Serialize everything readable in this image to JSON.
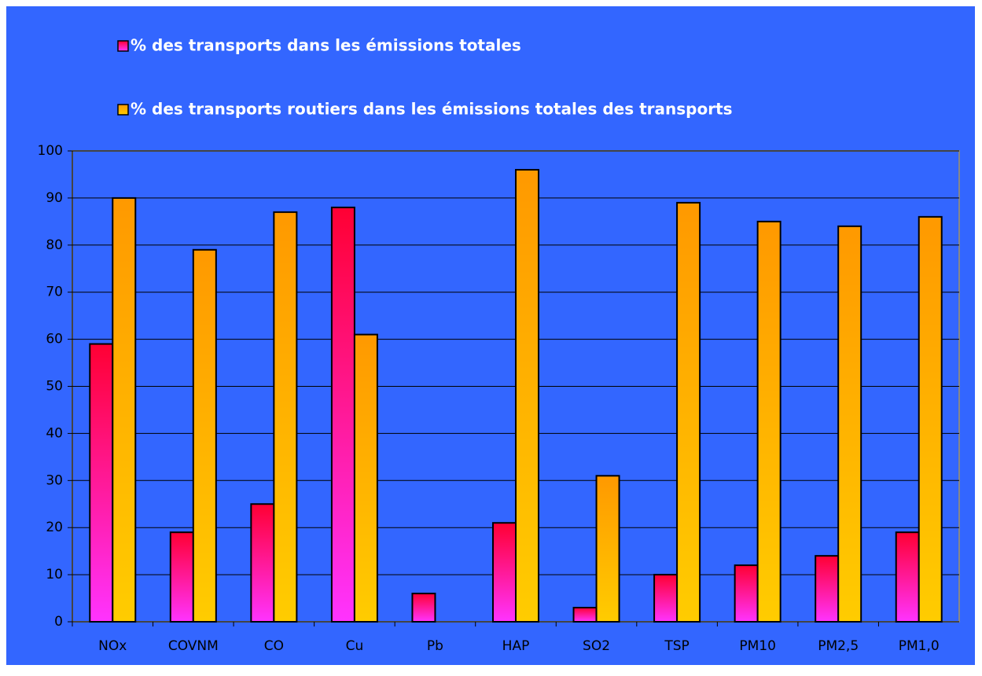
{
  "chart_data": {
    "type": "bar",
    "categories": [
      "NOx",
      "COVNM",
      "CO",
      "Cu",
      "Pb",
      "HAP",
      "SO2",
      "TSP",
      "PM10",
      "PM2,5",
      "PM1,0"
    ],
    "series": [
      {
        "name": "% des transports dans les émissions totales",
        "color": [
          "#ff0033",
          "#ff33ff"
        ],
        "values": [
          59,
          19,
          25,
          88,
          6,
          21,
          3,
          10,
          12,
          14,
          19
        ]
      },
      {
        "name": "% des transports routiers dans les émissions totales des transports",
        "color": [
          "#ff9900",
          "#ffcc00"
        ],
        "values": [
          90,
          79,
          87,
          61,
          null,
          96,
          31,
          89,
          85,
          84,
          86
        ]
      }
    ],
    "ylim": [
      0,
      100
    ],
    "yticks": [
      0,
      10,
      20,
      30,
      40,
      50,
      60,
      70,
      80,
      90,
      100
    ],
    "grid": true,
    "background": "#3366ff"
  }
}
